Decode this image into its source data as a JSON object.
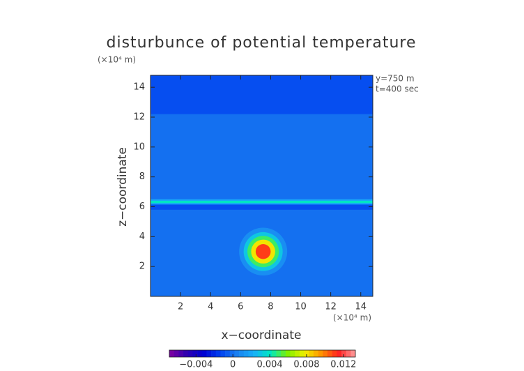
{
  "chart_data": {
    "type": "contour",
    "title": "disturbunce of potential temperature",
    "x_label": "x−coordinate",
    "y_label": "z−coordinate",
    "x_unit": "(×10⁴ m)",
    "y_unit": "(×10⁴ m)",
    "annotations": [
      "y=750 m",
      "t=400 sec"
    ],
    "xlim": [
      0,
      14.8
    ],
    "ylim": [
      0,
      14.8
    ],
    "xticks": [
      2,
      4,
      6,
      8,
      10,
      12,
      14
    ],
    "yticks": [
      2,
      4,
      6,
      8,
      10,
      12,
      14
    ],
    "clim": [
      -0.0069,
      0.0133
    ],
    "cticks": [
      {
        "value": -0.004,
        "label": "−0.004"
      },
      0,
      0.004,
      0.008,
      0.012
    ],
    "colormap": [
      "#8000a0",
      "#3000b0",
      "#0000d0",
      "#0040f0",
      "#1a80f0",
      "#18b0f8",
      "#00e8c0",
      "#80f000",
      "#f0f000",
      "#ff9000",
      "#ff2020",
      "#ffa0a0"
    ],
    "regions": [
      {
        "shape": "rect",
        "x": [
          0,
          14.8
        ],
        "z": [
          0,
          14.8
        ],
        "value": 0
      },
      {
        "shape": "rect",
        "x": [
          0,
          14.8
        ],
        "z": [
          12.2,
          14.8
        ],
        "value": -0.001
      },
      {
        "shape": "rect",
        "x": [
          0,
          14.8
        ],
        "z": [
          5.8,
          6.2
        ],
        "value": -0.001
      },
      {
        "shape": "rect",
        "x": [
          0,
          14.8
        ],
        "z": [
          6.15,
          6.5
        ],
        "value": 0.002
      },
      {
        "shape": "rect",
        "x": [
          0,
          14.8
        ],
        "z": [
          6.25,
          6.4
        ],
        "value": 0.004
      },
      {
        "shape": "circle",
        "center": [
          7.5,
          3
        ],
        "r": 1.6,
        "value": 0.001
      },
      {
        "shape": "circle",
        "center": [
          7.5,
          3
        ],
        "r": 1.3,
        "value": 0.003
      },
      {
        "shape": "circle",
        "center": [
          7.5,
          3
        ],
        "r": 1.05,
        "value": 0.005
      },
      {
        "shape": "circle",
        "center": [
          7.5,
          3
        ],
        "r": 0.8,
        "value": 0.008
      },
      {
        "shape": "circle",
        "center": [
          7.5,
          3
        ],
        "r": 0.5,
        "value": 0.011
      }
    ]
  }
}
